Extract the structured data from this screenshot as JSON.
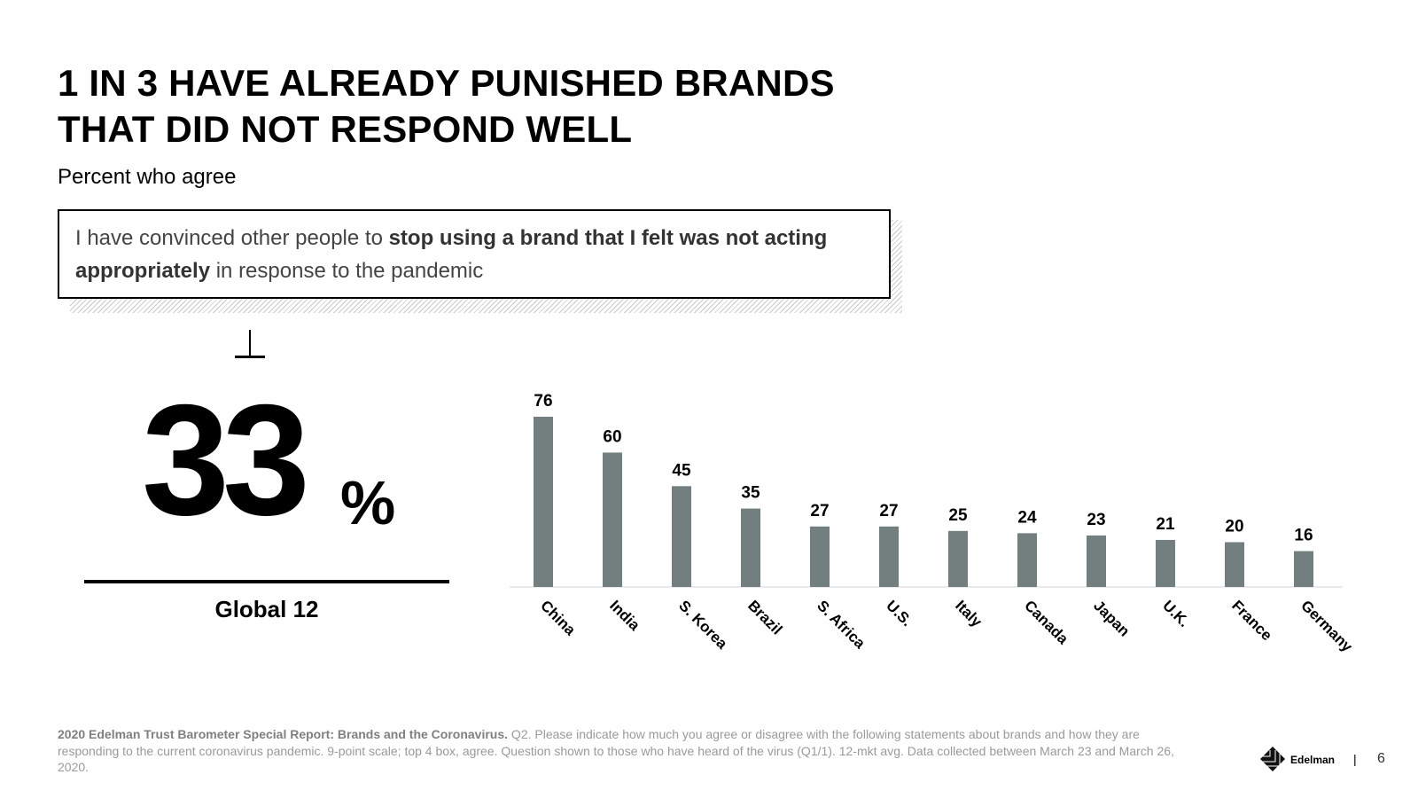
{
  "title": {
    "line1": "1 IN 3 HAVE ALREADY PUNISHED BRANDS",
    "line2": "THAT DID NOT RESPOND WELL"
  },
  "subtitle": "Percent who agree",
  "statement": {
    "pre": "I have convinced other people to ",
    "bold": "stop using a brand that I felt was not acting appropriately",
    "post": " in response to the pandemic"
  },
  "global": {
    "value": "33",
    "unit": "%",
    "label": "Global 12"
  },
  "chart_data": {
    "type": "bar",
    "categories": [
      "China",
      "India",
      "S. Korea",
      "Brazil",
      "S. Africa",
      "U.S.",
      "Italy",
      "Canada",
      "Japan",
      "U.K.",
      "France",
      "Germany"
    ],
    "values": [
      76,
      60,
      45,
      35,
      27,
      27,
      25,
      24,
      23,
      21,
      20,
      16
    ],
    "title": "",
    "xlabel": "",
    "ylabel": "",
    "ylim": [
      0,
      80
    ],
    "grid": false,
    "data_labels": true,
    "x_tick_rotation": 45,
    "bar_color": "#737f7f"
  },
  "footnote": {
    "bold": "2020 Edelman Trust Barometer Special Report: Brands and the Coronavirus.",
    "text": " Q2. Please indicate how much you agree or disagree with the following statements about brands and how they are responding to the current coronavirus pandemic. 9-point scale; top 4 box, agree. Question shown to those who have heard of the virus (Q1/1). 12-mkt avg. Data collected between March 23 and March 26, 2020."
  },
  "brand": "Edelman",
  "page_separator": "|",
  "page_number": "6"
}
